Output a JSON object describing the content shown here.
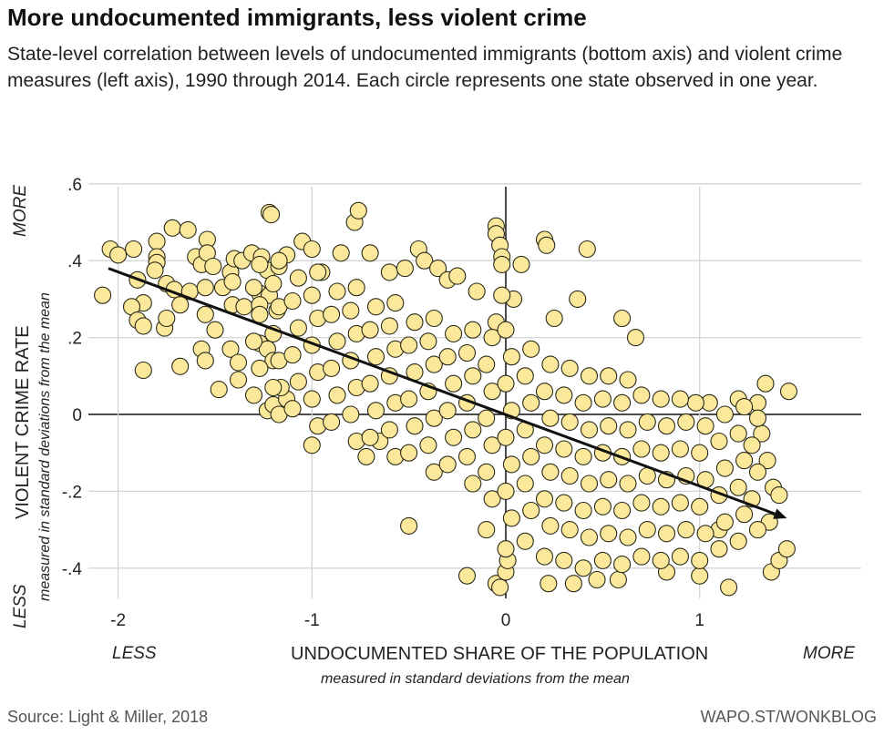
{
  "title": "More undocumented immigrants, less violent crime",
  "subtitle": "State-level correlation between levels of undocumented immigrants (bottom axis) and violent crime measures (left axis), 1990 through 2014. Each circle represents one state observed in one year.",
  "source": "Source: Light & Miller, 2018",
  "credit": "WAPO.ST/WONKBLOG",
  "colors": {
    "point_fill": "#fbe89a",
    "point_stroke": "#2a2a1a",
    "grid": "#d4d4d4",
    "zero_line": "#111111",
    "trend": "#111111"
  },
  "chart_data": {
    "type": "scatter",
    "title": "More undocumented immigrants, less violent crime",
    "xlabel": "UNDOCUMENTED SHARE OF THE POPULATION",
    "xlabel_sub": "measured in standard deviations from the mean",
    "x_less": "LESS",
    "x_more": "MORE",
    "ylabel": "VIOLENT CRIME RATE",
    "ylabel_sub": "measured in standard deviations from the mean",
    "y_less": "LESS",
    "y_more": "MORE",
    "xlim": [
      -2.15,
      1.83
    ],
    "ylim": [
      -0.47,
      0.6
    ],
    "x_ticks": [
      {
        "value": -2,
        "label": "-2"
      },
      {
        "value": -1,
        "label": "-1"
      },
      {
        "value": 0,
        "label": "0"
      },
      {
        "value": 1,
        "label": "1"
      }
    ],
    "y_ticks": [
      {
        "value": 0.6,
        "label": ".6"
      },
      {
        "value": 0.4,
        "label": ".4"
      },
      {
        "value": 0.2,
        "label": ".2"
      },
      {
        "value": 0,
        "label": "0"
      },
      {
        "value": -0.2,
        "label": "-.2"
      },
      {
        "value": -0.4,
        "label": "-.4"
      }
    ],
    "grid": true,
    "trend_line": {
      "from": [
        -2.05,
        0.38
      ],
      "to": [
        1.45,
        -0.27
      ],
      "arrow": true
    },
    "points": [
      [
        -2.08,
        0.31
      ],
      [
        -2.04,
        0.43
      ],
      [
        -2.0,
        0.415
      ],
      [
        -1.92,
        0.43
      ],
      [
        -1.9,
        0.35
      ],
      [
        -1.87,
        0.29
      ],
      [
        -1.93,
        0.28
      ],
      [
        -1.9,
        0.245
      ],
      [
        -1.87,
        0.23
      ],
      [
        -1.87,
        0.115
      ],
      [
        -1.8,
        0.45
      ],
      [
        -1.8,
        0.41
      ],
      [
        -1.8,
        0.395
      ],
      [
        -1.81,
        0.375
      ],
      [
        -1.72,
        0.485
      ],
      [
        -1.64,
        0.48
      ],
      [
        -1.75,
        0.34
      ],
      [
        -1.71,
        0.325
      ],
      [
        -1.63,
        0.32
      ],
      [
        -1.68,
        0.285
      ],
      [
        -1.76,
        0.225
      ],
      [
        -1.75,
        0.25
      ],
      [
        -1.68,
        0.125
      ],
      [
        -1.6,
        0.41
      ],
      [
        -1.57,
        0.39
      ],
      [
        -1.54,
        0.455
      ],
      [
        -1.54,
        0.42
      ],
      [
        -1.51,
        0.385
      ],
      [
        -1.55,
        0.33
      ],
      [
        -1.55,
        0.26
      ],
      [
        -1.5,
        0.22
      ],
      [
        -1.57,
        0.17
      ],
      [
        -1.55,
        0.14
      ],
      [
        -1.48,
        0.065
      ],
      [
        -1.42,
        0.17
      ],
      [
        -1.38,
        0.135
      ],
      [
        -1.38,
        0.09
      ],
      [
        -1.46,
        0.33
      ],
      [
        -1.42,
        0.37
      ],
      [
        -1.4,
        0.405
      ],
      [
        -1.36,
        0.4
      ],
      [
        -1.41,
        0.345
      ],
      [
        -1.41,
        0.285
      ],
      [
        -1.35,
        0.28
      ],
      [
        -1.31,
        0.42
      ],
      [
        -1.26,
        0.41
      ],
      [
        -1.23,
        0.375
      ],
      [
        -1.17,
        0.385
      ],
      [
        -1.22,
        0.525
      ],
      [
        -1.21,
        0.52
      ],
      [
        -1.27,
        0.315
      ],
      [
        -1.22,
        0.31
      ],
      [
        -1.18,
        0.27
      ],
      [
        -1.27,
        0.285
      ],
      [
        -1.27,
        0.185
      ],
      [
        -1.23,
        0.17
      ],
      [
        -1.2,
        0.14
      ],
      [
        -1.23,
        0.01
      ],
      [
        -1.2,
        0.025
      ],
      [
        -1.13,
        0.04
      ],
      [
        -1.16,
        0.07
      ],
      [
        -1.13,
        0.415
      ],
      [
        -1.05,
        0.45
      ],
      [
        -1.0,
        0.43
      ],
      [
        -0.95,
        0.37
      ],
      [
        -0.85,
        0.42
      ],
      [
        -0.78,
        0.5
      ],
      [
        -0.76,
        0.53
      ],
      [
        -0.7,
        0.42
      ],
      [
        -0.6,
        0.37
      ],
      [
        -0.52,
        0.38
      ],
      [
        -0.45,
        0.43
      ],
      [
        -0.42,
        0.4
      ],
      [
        -0.35,
        0.38
      ],
      [
        -0.3,
        0.35
      ],
      [
        -0.25,
        0.36
      ],
      [
        -0.15,
        0.32
      ],
      [
        -0.05,
        0.24
      ],
      [
        -0.72,
        -0.11
      ],
      [
        -1.0,
        -0.08
      ],
      [
        -0.65,
        -0.07
      ],
      [
        -0.05,
        0.49
      ],
      [
        -0.05,
        0.47
      ],
      [
        -0.03,
        0.44
      ],
      [
        -0.02,
        0.41
      ],
      [
        -0.02,
        0.39
      ],
      [
        0.2,
        0.455
      ],
      [
        0.21,
        0.44
      ],
      [
        0.42,
        0.43
      ],
      [
        0.08,
        0.39
      ],
      [
        0.04,
        0.3
      ],
      [
        0.25,
        0.25
      ],
      [
        0.37,
        0.3
      ],
      [
        0.6,
        0.25
      ],
      [
        0.67,
        0.2
      ],
      [
        -0.02,
        0.31
      ],
      [
        -0.5,
        -0.29
      ],
      [
        -0.2,
        -0.42
      ],
      [
        -0.05,
        -0.44
      ],
      [
        -0.03,
        -0.45
      ],
      [
        0.0,
        -0.41
      ],
      [
        0.01,
        -0.38
      ],
      [
        0.22,
        -0.44
      ],
      [
        0.35,
        -0.44
      ],
      [
        0.47,
        -0.43
      ],
      [
        0.58,
        -0.43
      ],
      [
        0.83,
        -0.41
      ],
      [
        1.0,
        -0.42
      ],
      [
        1.1,
        -0.3
      ],
      [
        1.15,
        -0.45
      ],
      [
        1.37,
        -0.41
      ],
      [
        1.41,
        -0.38
      ],
      [
        1.45,
        -0.35
      ],
      [
        1.36,
        -0.28
      ],
      [
        1.38,
        -0.19
      ],
      [
        1.41,
        -0.21
      ],
      [
        1.46,
        0.06
      ],
      [
        1.34,
        0.08
      ],
      [
        1.3,
        0.03
      ],
      [
        1.2,
        0.04
      ],
      [
        1.05,
        0.03
      ],
      [
        0.98,
        0.03
      ],
      [
        1.35,
        -0.12
      ],
      [
        1.32,
        -0.05
      ],
      [
        -1.3,
        0.05
      ],
      [
        -1.27,
        0.12
      ],
      [
        -1.3,
        0.19
      ],
      [
        -1.27,
        0.26
      ],
      [
        -1.3,
        0.33
      ],
      [
        -1.27,
        0.39
      ],
      [
        -1.17,
        0.0
      ],
      [
        -1.2,
        0.07
      ],
      [
        -1.17,
        0.14
      ],
      [
        -1.2,
        0.21
      ],
      [
        -1.17,
        0.28
      ],
      [
        -1.2,
        0.34
      ],
      [
        -1.17,
        0.4
      ],
      [
        -1.1,
        0.015
      ],
      [
        -1.07,
        0.085
      ],
      [
        -1.1,
        0.155
      ],
      [
        -1.07,
        0.225
      ],
      [
        -1.1,
        0.295
      ],
      [
        -1.07,
        0.355
      ],
      [
        -0.97,
        -0.03
      ],
      [
        -1.0,
        0.04
      ],
      [
        -0.97,
        0.11
      ],
      [
        -1.0,
        0.18
      ],
      [
        -0.97,
        0.25
      ],
      [
        -1.0,
        0.31
      ],
      [
        -0.97,
        0.37
      ],
      [
        -0.9,
        -0.02
      ],
      [
        -0.87,
        0.05
      ],
      [
        -0.9,
        0.12
      ],
      [
        -0.87,
        0.19
      ],
      [
        -0.9,
        0.26
      ],
      [
        -0.87,
        0.32
      ],
      [
        -0.77,
        -0.07
      ],
      [
        -0.8,
        0.0
      ],
      [
        -0.77,
        0.07
      ],
      [
        -0.8,
        0.14
      ],
      [
        -0.77,
        0.21
      ],
      [
        -0.8,
        0.27
      ],
      [
        -0.77,
        0.33
      ],
      [
        -0.7,
        -0.06
      ],
      [
        -0.67,
        0.01
      ],
      [
        -0.7,
        0.08
      ],
      [
        -0.67,
        0.15
      ],
      [
        -0.7,
        0.22
      ],
      [
        -0.67,
        0.28
      ],
      [
        -0.57,
        -0.11
      ],
      [
        -0.6,
        -0.04
      ],
      [
        -0.57,
        0.03
      ],
      [
        -0.6,
        0.1
      ],
      [
        -0.57,
        0.17
      ],
      [
        -0.6,
        0.23
      ],
      [
        -0.57,
        0.29
      ],
      [
        -0.5,
        -0.1
      ],
      [
        -0.47,
        -0.03
      ],
      [
        -0.5,
        0.04
      ],
      [
        -0.47,
        0.11
      ],
      [
        -0.5,
        0.18
      ],
      [
        -0.47,
        0.24
      ],
      [
        -0.37,
        -0.15
      ],
      [
        -0.4,
        -0.08
      ],
      [
        -0.37,
        -0.01
      ],
      [
        -0.4,
        0.06
      ],
      [
        -0.37,
        0.13
      ],
      [
        -0.4,
        0.19
      ],
      [
        -0.37,
        0.25
      ],
      [
        -0.3,
        -0.13
      ],
      [
        -0.27,
        -0.06
      ],
      [
        -0.3,
        0.01
      ],
      [
        -0.27,
        0.08
      ],
      [
        -0.3,
        0.15
      ],
      [
        -0.27,
        0.21
      ],
      [
        -0.17,
        -0.18
      ],
      [
        -0.2,
        -0.11
      ],
      [
        -0.17,
        -0.04
      ],
      [
        -0.2,
        0.03
      ],
      [
        -0.17,
        0.1
      ],
      [
        -0.2,
        0.16
      ],
      [
        -0.17,
        0.22
      ],
      [
        -0.1,
        -0.3
      ],
      [
        -0.07,
        -0.22
      ],
      [
        -0.1,
        -0.15
      ],
      [
        -0.07,
        -0.08
      ],
      [
        -0.1,
        -0.01
      ],
      [
        -0.07,
        0.06
      ],
      [
        -0.1,
        0.13
      ],
      [
        -0.07,
        0.2
      ],
      [
        0.0,
        -0.35
      ],
      [
        0.03,
        -0.27
      ],
      [
        0.0,
        -0.2
      ],
      [
        0.03,
        -0.13
      ],
      [
        0.0,
        -0.06
      ],
      [
        0.03,
        0.01
      ],
      [
        0.0,
        0.08
      ],
      [
        0.03,
        0.15
      ],
      [
        0.0,
        0.22
      ],
      [
        0.1,
        -0.33
      ],
      [
        0.13,
        -0.25
      ],
      [
        0.1,
        -0.18
      ],
      [
        0.13,
        -0.11
      ],
      [
        0.1,
        -0.04
      ],
      [
        0.13,
        0.03
      ],
      [
        0.1,
        0.1
      ],
      [
        0.13,
        0.17
      ],
      [
        0.2,
        -0.37
      ],
      [
        0.23,
        -0.29
      ],
      [
        0.2,
        -0.22
      ],
      [
        0.23,
        -0.15
      ],
      [
        0.2,
        -0.08
      ],
      [
        0.23,
        -0.01
      ],
      [
        0.2,
        0.06
      ],
      [
        0.23,
        0.13
      ],
      [
        0.3,
        -0.38
      ],
      [
        0.33,
        -0.3
      ],
      [
        0.3,
        -0.23
      ],
      [
        0.33,
        -0.16
      ],
      [
        0.3,
        -0.09
      ],
      [
        0.33,
        -0.02
      ],
      [
        0.3,
        0.05
      ],
      [
        0.33,
        0.12
      ],
      [
        0.4,
        -0.4
      ],
      [
        0.43,
        -0.32
      ],
      [
        0.4,
        -0.25
      ],
      [
        0.43,
        -0.18
      ],
      [
        0.4,
        -0.11
      ],
      [
        0.43,
        -0.04
      ],
      [
        0.4,
        0.03
      ],
      [
        0.43,
        0.1
      ],
      [
        0.5,
        -0.38
      ],
      [
        0.53,
        -0.31
      ],
      [
        0.5,
        -0.24
      ],
      [
        0.53,
        -0.17
      ],
      [
        0.5,
        -0.1
      ],
      [
        0.53,
        -0.03
      ],
      [
        0.5,
        0.04
      ],
      [
        0.53,
        0.1
      ],
      [
        0.6,
        -0.39
      ],
      [
        0.63,
        -0.32
      ],
      [
        0.6,
        -0.25
      ],
      [
        0.63,
        -0.18
      ],
      [
        0.6,
        -0.11
      ],
      [
        0.63,
        -0.04
      ],
      [
        0.6,
        0.03
      ],
      [
        0.63,
        0.09
      ],
      [
        0.7,
        -0.37
      ],
      [
        0.73,
        -0.3
      ],
      [
        0.7,
        -0.23
      ],
      [
        0.73,
        -0.16
      ],
      [
        0.7,
        -0.09
      ],
      [
        0.73,
        -0.02
      ],
      [
        0.7,
        0.05
      ],
      [
        0.8,
        -0.38
      ],
      [
        0.83,
        -0.31
      ],
      [
        0.8,
        -0.24
      ],
      [
        0.83,
        -0.17
      ],
      [
        0.8,
        -0.1
      ],
      [
        0.83,
        -0.03
      ],
      [
        0.8,
        0.04
      ],
      [
        0.9,
        -0.37
      ],
      [
        0.93,
        -0.3
      ],
      [
        0.9,
        -0.23
      ],
      [
        0.93,
        -0.16
      ],
      [
        0.9,
        -0.09
      ],
      [
        0.93,
        -0.02
      ],
      [
        0.9,
        0.04
      ],
      [
        1.0,
        -0.38
      ],
      [
        1.03,
        -0.31
      ],
      [
        1.0,
        -0.24
      ],
      [
        1.03,
        -0.17
      ],
      [
        1.0,
        -0.1
      ],
      [
        1.03,
        -0.03
      ],
      [
        1.1,
        -0.35
      ],
      [
        1.13,
        -0.28
      ],
      [
        1.1,
        -0.21
      ],
      [
        1.13,
        -0.14
      ],
      [
        1.1,
        -0.07
      ],
      [
        1.13,
        0.0
      ],
      [
        1.2,
        -0.33
      ],
      [
        1.23,
        -0.26
      ],
      [
        1.2,
        -0.19
      ],
      [
        1.23,
        -0.12
      ],
      [
        1.2,
        -0.05
      ],
      [
        1.23,
        0.02
      ],
      [
        1.3,
        -0.3
      ],
      [
        1.27,
        -0.22
      ],
      [
        1.3,
        -0.15
      ],
      [
        1.27,
        -0.08
      ],
      [
        1.3,
        -0.01
      ]
    ]
  }
}
